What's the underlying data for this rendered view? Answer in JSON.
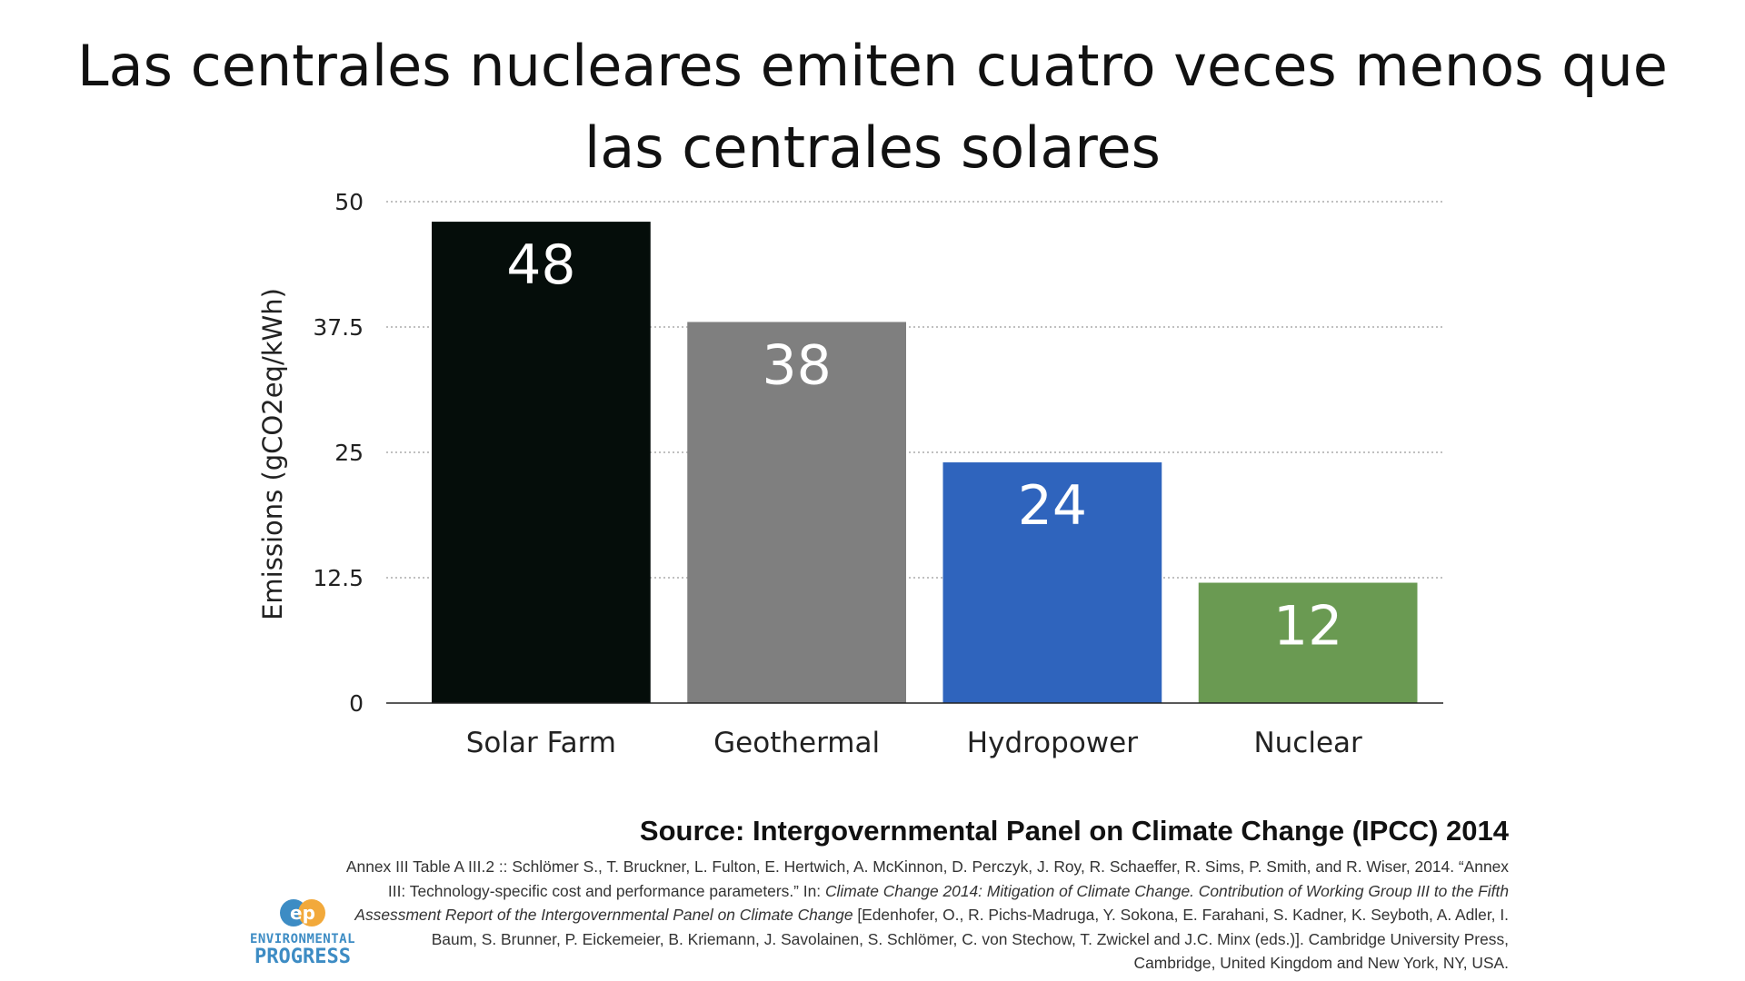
{
  "title": "Las centrales nucleares emiten cuatro veces menos que las centrales solares",
  "chart_data": {
    "type": "bar",
    "title": "",
    "xlabel": "",
    "ylabel": "Emissions (gCO2eq/kWh)",
    "ylim": [
      0,
      50
    ],
    "yticks": [
      0,
      12.5,
      25,
      37.5,
      50
    ],
    "ytick_labels": [
      "0",
      "12.5",
      "25",
      "37.5",
      "50"
    ],
    "grid": "horizontal dotted",
    "legend": "none",
    "categories": [
      "Solar Farm",
      "Geothermal",
      "Hydropower",
      "Nuclear"
    ],
    "values": [
      48,
      38,
      24,
      12
    ],
    "data_labels": [
      "48",
      "38",
      "24",
      "12"
    ],
    "colors": [
      "#050d0a",
      "#7f7f7f",
      "#2f64bd",
      "#6a9a52"
    ]
  },
  "source": {
    "heading": "Source: Intergovernmental Panel on Climate Change (IPCC) 2014",
    "citation_a": "Annex III Table A III.2  :: Schlömer S., T. Bruckner, L. Fulton, E. Hertwich, A. McKinnon, D. Perczyk, J. Roy, R. Schaeffer, R. Sims, P. Smith, and R. Wiser, 2014. “Annex III: Technology-specific cost and performance parameters.” In: ",
    "citation_italic": "Climate Change 2014: Mitigation of Climate Change. Contribution of Working Group III to the Fifth Assessment Report of the Intergovernmental Panel on Climate Change",
    "citation_b": " [Edenhofer, O., R. Pichs-Madruga, Y. Sokona, E. Farahani, S. Kadner, K. Seyboth, A. Adler, I. Baum, S. Brunner, P. Eickemeier, B. Kriemann, J. Savolainen, S. Schlömer, C. von Stechow, T. Zwickel and J.C. Minx (eds.)]. Cambridge University Press, Cambridge, United Kingdom and New York, NY, USA."
  },
  "logo": {
    "mark": "ep",
    "line1": "ENVIRONMENTAL",
    "line2": "PROGRESS",
    "color": "#3d8cc4",
    "accent": "#f2a93b"
  }
}
